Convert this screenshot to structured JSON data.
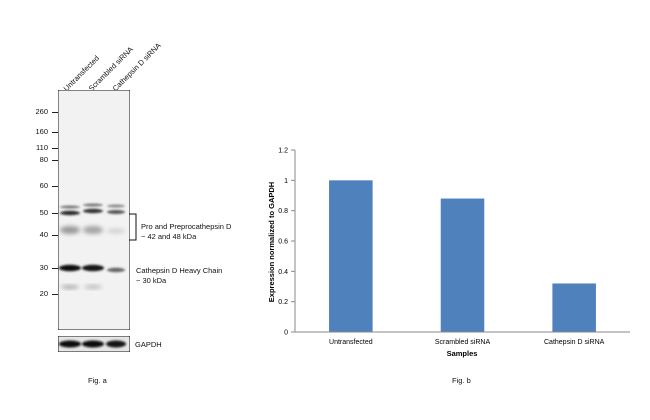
{
  "figure_a": {
    "lanes": [
      "Untransfected",
      "Scrambled siRNA",
      "Cathepsin D siRNA"
    ],
    "mw_markers": [
      "260",
      "160",
      "110",
      "80",
      "60",
      "50",
      "40",
      "30",
      "20"
    ],
    "annotations": {
      "pro": {
        "line1": "Pro and Preprocathepsin D",
        "line2": "~ 42 and 48  kDa"
      },
      "heavy": {
        "line1": "Cathepsin D Heavy Chain",
        "line2": "~ 30 kDa"
      }
    },
    "loading_control": "GAPDH",
    "caption": "Fig. a"
  },
  "chart_data": {
    "type": "bar",
    "categories": [
      "Untransfected",
      "Scrambled siRNA",
      "Cathepsin D siRNA"
    ],
    "values": [
      1.0,
      0.88,
      0.32
    ],
    "xlabel": "Samples",
    "ylabel": "Expression normalized to GAPDH",
    "ylim": [
      0,
      1.2
    ],
    "yticks": [
      0,
      0.2,
      0.4,
      0.6,
      0.8,
      1,
      1.2
    ],
    "ytick_labels": [
      "0",
      "0.2",
      "0.4",
      "0.6",
      "0.8",
      "1",
      "1.2"
    ],
    "grid": false,
    "bar_color": "#4f81bd",
    "caption": "Fig. b"
  }
}
